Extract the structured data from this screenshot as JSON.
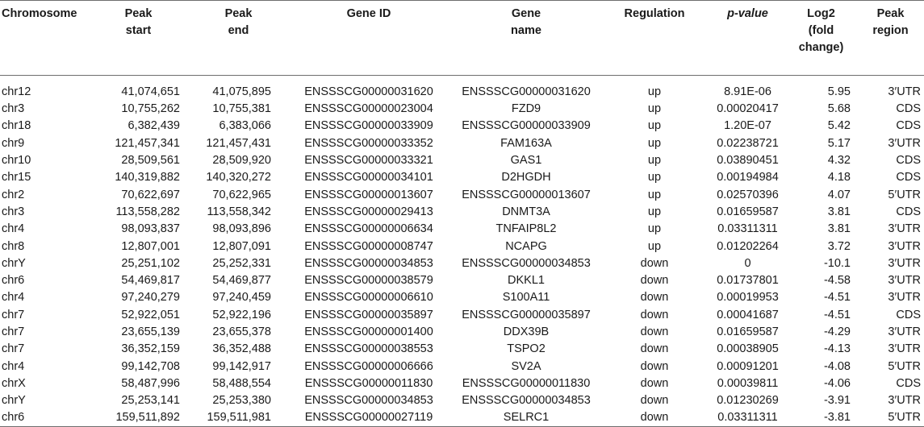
{
  "headers": {
    "chromosome": "Chromosome",
    "peak_start": "Peak\nstart",
    "peak_end": "Peak\nend",
    "gene_id": "Gene ID",
    "gene_name": "Gene\nname",
    "regulation": "Regulation",
    "p_value": "p-value",
    "log2": "Log2\n(fold\nchange)",
    "peak_region": "Peak\nregion"
  },
  "rows": [
    {
      "chromosome": "chr12",
      "peak_start": "41,074,651",
      "peak_end": "41,075,895",
      "gene_id": "ENSSSCG00000031620",
      "gene_name": "ENSSSCG00000031620",
      "regulation": "up",
      "p_value": "8.91E-06",
      "log2": "5.95",
      "peak_region": "3′UTR"
    },
    {
      "chromosome": "chr3",
      "peak_start": "10,755,262",
      "peak_end": "10,755,381",
      "gene_id": "ENSSSCG00000023004",
      "gene_name": "FZD9",
      "regulation": "up",
      "p_value": "0.00020417",
      "log2": "5.68",
      "peak_region": "CDS"
    },
    {
      "chromosome": "chr18",
      "peak_start": "6,382,439",
      "peak_end": "6,383,066",
      "gene_id": "ENSSSCG00000033909",
      "gene_name": "ENSSSCG00000033909",
      "regulation": "up",
      "p_value": "1.20E-07",
      "log2": "5.42",
      "peak_region": "CDS"
    },
    {
      "chromosome": "chr9",
      "peak_start": "121,457,341",
      "peak_end": "121,457,431",
      "gene_id": "ENSSSCG00000033352",
      "gene_name": "FAM163A",
      "regulation": "up",
      "p_value": "0.02238721",
      "log2": "5.17",
      "peak_region": "3′UTR"
    },
    {
      "chromosome": "chr10",
      "peak_start": "28,509,561",
      "peak_end": "28,509,920",
      "gene_id": "ENSSSCG00000033321",
      "gene_name": "GAS1",
      "regulation": "up",
      "p_value": "0.03890451",
      "log2": "4.32",
      "peak_region": "CDS"
    },
    {
      "chromosome": "chr15",
      "peak_start": "140,319,882",
      "peak_end": "140,320,272",
      "gene_id": "ENSSSCG00000034101",
      "gene_name": "D2HGDH",
      "regulation": "up",
      "p_value": "0.00194984",
      "log2": "4.18",
      "peak_region": "CDS"
    },
    {
      "chromosome": "chr2",
      "peak_start": "70,622,697",
      "peak_end": "70,622,965",
      "gene_id": "ENSSSCG00000013607",
      "gene_name": "ENSSSCG00000013607",
      "regulation": "up",
      "p_value": "0.02570396",
      "log2": "4.07",
      "peak_region": "5′UTR"
    },
    {
      "chromosome": "chr3",
      "peak_start": "113,558,282",
      "peak_end": "113,558,342",
      "gene_id": "ENSSSCG00000029413",
      "gene_name": "DNMT3A",
      "regulation": "up",
      "p_value": "0.01659587",
      "log2": "3.81",
      "peak_region": "CDS"
    },
    {
      "chromosome": "chr4",
      "peak_start": "98,093,837",
      "peak_end": "98,093,896",
      "gene_id": "ENSSSCG00000006634",
      "gene_name": "TNFAIP8L2",
      "regulation": "up",
      "p_value": "0.03311311",
      "log2": "3.81",
      "peak_region": "3′UTR"
    },
    {
      "chromosome": "chr8",
      "peak_start": "12,807,001",
      "peak_end": "12,807,091",
      "gene_id": "ENSSSCG00000008747",
      "gene_name": "NCAPG",
      "regulation": "up",
      "p_value": "0.01202264",
      "log2": "3.72",
      "peak_region": "3′UTR"
    },
    {
      "chromosome": "chrY",
      "peak_start": "25,251,102",
      "peak_end": "25,252,331",
      "gene_id": "ENSSSCG00000034853",
      "gene_name": "ENSSSCG00000034853",
      "regulation": "down",
      "p_value": "0",
      "log2": "-10.1",
      "peak_region": "3′UTR"
    },
    {
      "chromosome": "chr6",
      "peak_start": "54,469,817",
      "peak_end": "54,469,877",
      "gene_id": "ENSSSCG00000038579",
      "gene_name": "DKKL1",
      "regulation": "down",
      "p_value": "0.01737801",
      "log2": "-4.58",
      "peak_region": "3′UTR"
    },
    {
      "chromosome": "chr4",
      "peak_start": "97,240,279",
      "peak_end": "97,240,459",
      "gene_id": "ENSSSCG00000006610",
      "gene_name": "S100A11",
      "regulation": "down",
      "p_value": "0.00019953",
      "log2": "-4.51",
      "peak_region": "3′UTR"
    },
    {
      "chromosome": "chr7",
      "peak_start": "52,922,051",
      "peak_end": "52,922,196",
      "gene_id": "ENSSSCG00000035897",
      "gene_name": "ENSSSCG00000035897",
      "regulation": "down",
      "p_value": "0.00041687",
      "log2": "-4.51",
      "peak_region": "CDS"
    },
    {
      "chromosome": "chr7",
      "peak_start": "23,655,139",
      "peak_end": "23,655,378",
      "gene_id": "ENSSSCG00000001400",
      "gene_name": "DDX39B",
      "regulation": "down",
      "p_value": "0.01659587",
      "log2": "-4.29",
      "peak_region": "3′UTR"
    },
    {
      "chromosome": "chr7",
      "peak_start": "36,352,159",
      "peak_end": "36,352,488",
      "gene_id": "ENSSSCG00000038553",
      "gene_name": "TSPO2",
      "regulation": "down",
      "p_value": "0.00038905",
      "log2": "-4.13",
      "peak_region": "3′UTR"
    },
    {
      "chromosome": "chr4",
      "peak_start": "99,142,708",
      "peak_end": "99,142,917",
      "gene_id": "ENSSSCG00000006666",
      "gene_name": "SV2A",
      "regulation": "down",
      "p_value": "0.00091201",
      "log2": "-4.08",
      "peak_region": "5′UTR"
    },
    {
      "chromosome": "chrX",
      "peak_start": "58,487,996",
      "peak_end": "58,488,554",
      "gene_id": "ENSSSCG00000011830",
      "gene_name": "ENSSSCG00000011830",
      "regulation": "down",
      "p_value": "0.00039811",
      "log2": "-4.06",
      "peak_region": "CDS"
    },
    {
      "chromosome": "chrY",
      "peak_start": "25,253,141",
      "peak_end": "25,253,380",
      "gene_id": "ENSSSCG00000034853",
      "gene_name": "ENSSSCG00000034853",
      "regulation": "down",
      "p_value": "0.01230269",
      "log2": "-3.91",
      "peak_region": "3′UTR"
    },
    {
      "chromosome": "chr6",
      "peak_start": "159,511,892",
      "peak_end": "159,511,981",
      "gene_id": "ENSSSCG00000027119",
      "gene_name": "SELRC1",
      "regulation": "down",
      "p_value": "0.03311311",
      "log2": "-3.81",
      "peak_region": "5′UTR"
    }
  ]
}
